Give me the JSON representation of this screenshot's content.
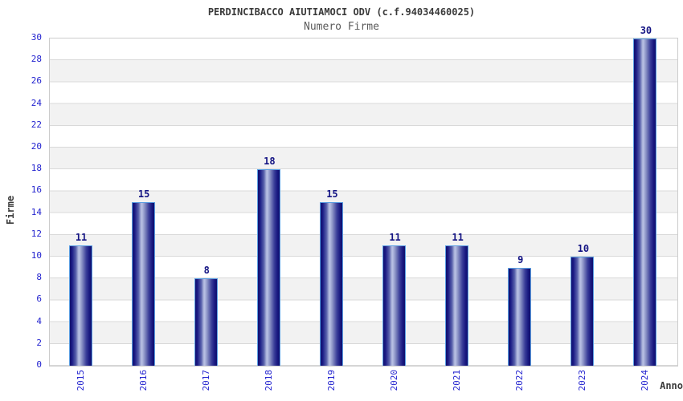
{
  "header": {
    "title": "PERDINCIBACCO AIUTIAMOCI ODV (c.f.94034460025)",
    "subtitle": "Numero Firme"
  },
  "chart_data": {
    "type": "bar",
    "title": "PERDINCIBACCO AIUTIAMOCI ODV (c.f.94034460025)",
    "subtitle": "Numero Firme",
    "categories": [
      "2015",
      "2016",
      "2017",
      "2018",
      "2019",
      "2020",
      "2021",
      "2022",
      "2023",
      "2024"
    ],
    "values": [
      11,
      15,
      8,
      18,
      15,
      11,
      11,
      9,
      10,
      30
    ],
    "xlabel": "Anno",
    "ylabel": "Firme",
    "ylim": [
      0,
      30
    ],
    "ytick_step": 2,
    "grid": true,
    "legend": "none",
    "colors": {
      "bar_dark": "#10106e",
      "bar_highlight": "#b9c1e4",
      "bar_border": "#5b9fe3",
      "tick_label": "#2323cf",
      "value_label": "#131383",
      "band_gray": "#f2f2f2",
      "gridline": "#d9d9d9",
      "plot_border": "#cccccc",
      "title_text": "#3a3a3a",
      "subtitle_text": "#5a5a5a"
    }
  }
}
